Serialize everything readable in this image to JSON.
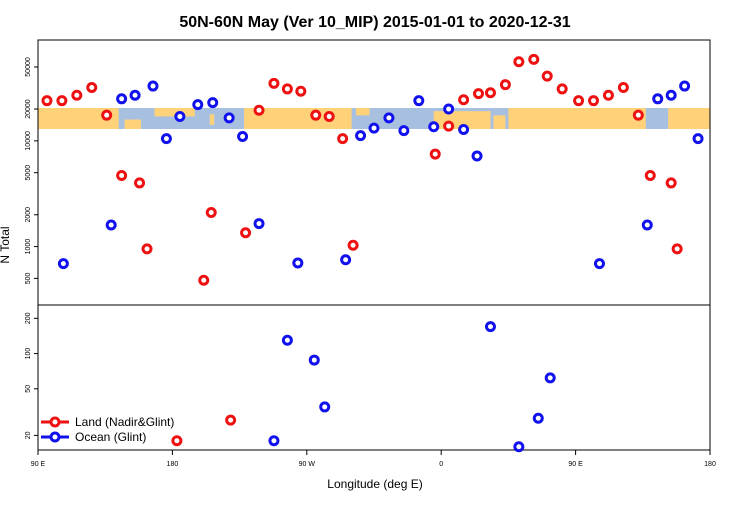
{
  "chart_data": {
    "type": "scatter",
    "title": "50N-60N May (Ver 10_MIP)   2015-01-01 to 2020-12-31",
    "xlabel": "Longitude (deg E)",
    "ylabel": "N Total",
    "x_ticks": [
      {
        "value": 90,
        "label": "90 E"
      },
      {
        "value": 180,
        "label": "180"
      },
      {
        "value": 270,
        "label": "90 W"
      },
      {
        "value": 360,
        "label": "0"
      },
      {
        "value": 450,
        "label": "90 E"
      },
      {
        "value": 540,
        "label": "180"
      }
    ],
    "xlim": [
      90,
      540
    ],
    "top_panel": {
      "y_scale": "log",
      "ylim": [
        280,
        90000
      ],
      "y_ticks": [
        "500",
        "1000",
        "2000",
        "5000",
        "10000",
        "20000",
        "50000"
      ],
      "series": [
        {
          "name": "Land (Nadir&Glint)",
          "color": "#ee1111",
          "points": [
            {
              "x": 96,
              "y": 24000
            },
            {
              "x": 106,
              "y": 24000
            },
            {
              "x": 116,
              "y": 27000
            },
            {
              "x": 126,
              "y": 32000
            },
            {
              "x": 136,
              "y": 17500
            },
            {
              "x": 146,
              "y": 4700
            },
            {
              "x": 158,
              "y": 4000
            },
            {
              "x": 163,
              "y": 950
            },
            {
              "x": 201,
              "y": 480
            },
            {
              "x": 206,
              "y": 2100
            },
            {
              "x": 229,
              "y": 1350
            },
            {
              "x": 238,
              "y": 19500
            },
            {
              "x": 248,
              "y": 35000
            },
            {
              "x": 257,
              "y": 31000
            },
            {
              "x": 266,
              "y": 29500
            },
            {
              "x": 276,
              "y": 17500
            },
            {
              "x": 285,
              "y": 17000
            },
            {
              "x": 294,
              "y": 10500
            },
            {
              "x": 301,
              "y": 1030
            },
            {
              "x": 356,
              "y": 7500
            },
            {
              "x": 365,
              "y": 13800
            },
            {
              "x": 375,
              "y": 24500
            },
            {
              "x": 385,
              "y": 28000
            },
            {
              "x": 393,
              "y": 28500
            },
            {
              "x": 403,
              "y": 34000
            },
            {
              "x": 412,
              "y": 56000
            },
            {
              "x": 422,
              "y": 59000
            },
            {
              "x": 431,
              "y": 41000
            },
            {
              "x": 441,
              "y": 31000
            },
            {
              "x": 452,
              "y": 24000
            },
            {
              "x": 462,
              "y": 24000
            },
            {
              "x": 472,
              "y": 27000
            },
            {
              "x": 482,
              "y": 32000
            },
            {
              "x": 492,
              "y": 17500
            },
            {
              "x": 500,
              "y": 4700
            },
            {
              "x": 514,
              "y": 4000
            },
            {
              "x": 518,
              "y": 950
            }
          ]
        },
        {
          "name": "Ocean (Glint)",
          "color": "#1111ee",
          "points": [
            {
              "x": 107,
              "y": 690
            },
            {
              "x": 139,
              "y": 1600
            },
            {
              "x": 146,
              "y": 25000
            },
            {
              "x": 155,
              "y": 27000
            },
            {
              "x": 167,
              "y": 33000
            },
            {
              "x": 176,
              "y": 10500
            },
            {
              "x": 185,
              "y": 17000
            },
            {
              "x": 197,
              "y": 22000
            },
            {
              "x": 207,
              "y": 23000
            },
            {
              "x": 218,
              "y": 16500
            },
            {
              "x": 227,
              "y": 11000
            },
            {
              "x": 238,
              "y": 1650
            },
            {
              "x": 264,
              "y": 700
            },
            {
              "x": 296,
              "y": 750
            },
            {
              "x": 306,
              "y": 11200
            },
            {
              "x": 315,
              "y": 13200
            },
            {
              "x": 325,
              "y": 16500
            },
            {
              "x": 335,
              "y": 12500
            },
            {
              "x": 345,
              "y": 24000
            },
            {
              "x": 355,
              "y": 13600
            },
            {
              "x": 365,
              "y": 20000
            },
            {
              "x": 375,
              "y": 12800
            },
            {
              "x": 384,
              "y": 7200
            },
            {
              "x": 466,
              "y": 690
            },
            {
              "x": 498,
              "y": 1600
            },
            {
              "x": 505,
              "y": 25000
            },
            {
              "x": 514,
              "y": 27000
            },
            {
              "x": 523,
              "y": 33000
            },
            {
              "x": 532,
              "y": 10500
            }
          ]
        }
      ]
    },
    "bottom_panel": {
      "y_scale": "log",
      "ylim": [
        15,
        260
      ],
      "y_ticks": [
        "20",
        "50",
        "100",
        "200"
      ],
      "series": [
        {
          "name": "Land (Nadir&Glint)",
          "color": "#ee1111",
          "points": [
            {
              "x": 183,
              "y": 18
            },
            {
              "x": 219,
              "y": 27
            }
          ]
        },
        {
          "name": "Ocean (Glint)",
          "color": "#1111ee",
          "points": [
            {
              "x": 248,
              "y": 18
            },
            {
              "x": 257,
              "y": 130
            },
            {
              "x": 275,
              "y": 88
            },
            {
              "x": 282,
              "y": 35
            },
            {
              "x": 393,
              "y": 170
            },
            {
              "x": 412,
              "y": 16
            },
            {
              "x": 425,
              "y": 28
            },
            {
              "x": 433,
              "y": 62
            }
          ]
        }
      ]
    },
    "legend": {
      "position": "bottom-left",
      "entries": [
        {
          "label": "Land (Nadir&Glint)",
          "color": "#ee1111"
        },
        {
          "label": "Ocean (Glint)",
          "color": "#1111ee"
        }
      ]
    },
    "map_strip": {
      "description_colors": {
        "ocean": "#a8c0e0",
        "land": "#ffd27a"
      }
    }
  }
}
